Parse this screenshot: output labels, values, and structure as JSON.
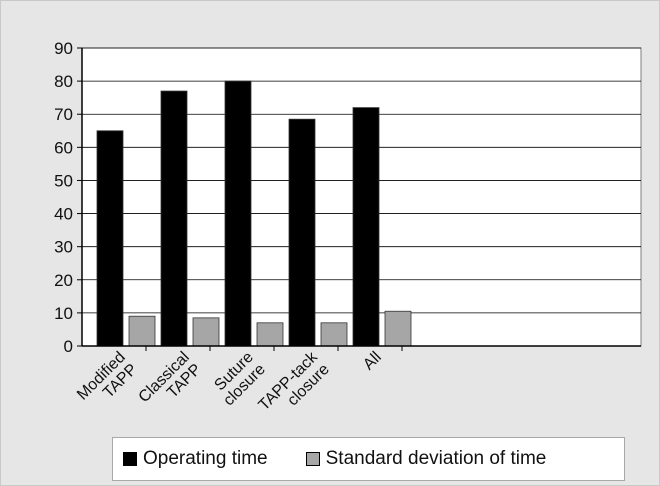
{
  "chart_data": {
    "type": "bar",
    "categories": [
      [
        "Modified",
        "TAPP"
      ],
      [
        "Classical",
        "TAPP"
      ],
      [
        "Suture",
        "closure"
      ],
      [
        "TAPP-tack",
        "closure"
      ],
      [
        "All"
      ]
    ],
    "series": [
      {
        "name": "Operating time",
        "color": "#000000",
        "values": [
          65,
          77,
          80,
          68.5,
          72
        ]
      },
      {
        "name": "Standard deviation of time",
        "color": "#a6a6a6",
        "values": [
          9,
          8.5,
          7,
          7,
          10.5
        ]
      }
    ],
    "yticks": [
      0,
      10,
      20,
      30,
      40,
      50,
      60,
      70,
      80,
      90
    ],
    "ylim": [
      0,
      90
    ],
    "grid": "horizontal",
    "legend_position": "bottom"
  }
}
